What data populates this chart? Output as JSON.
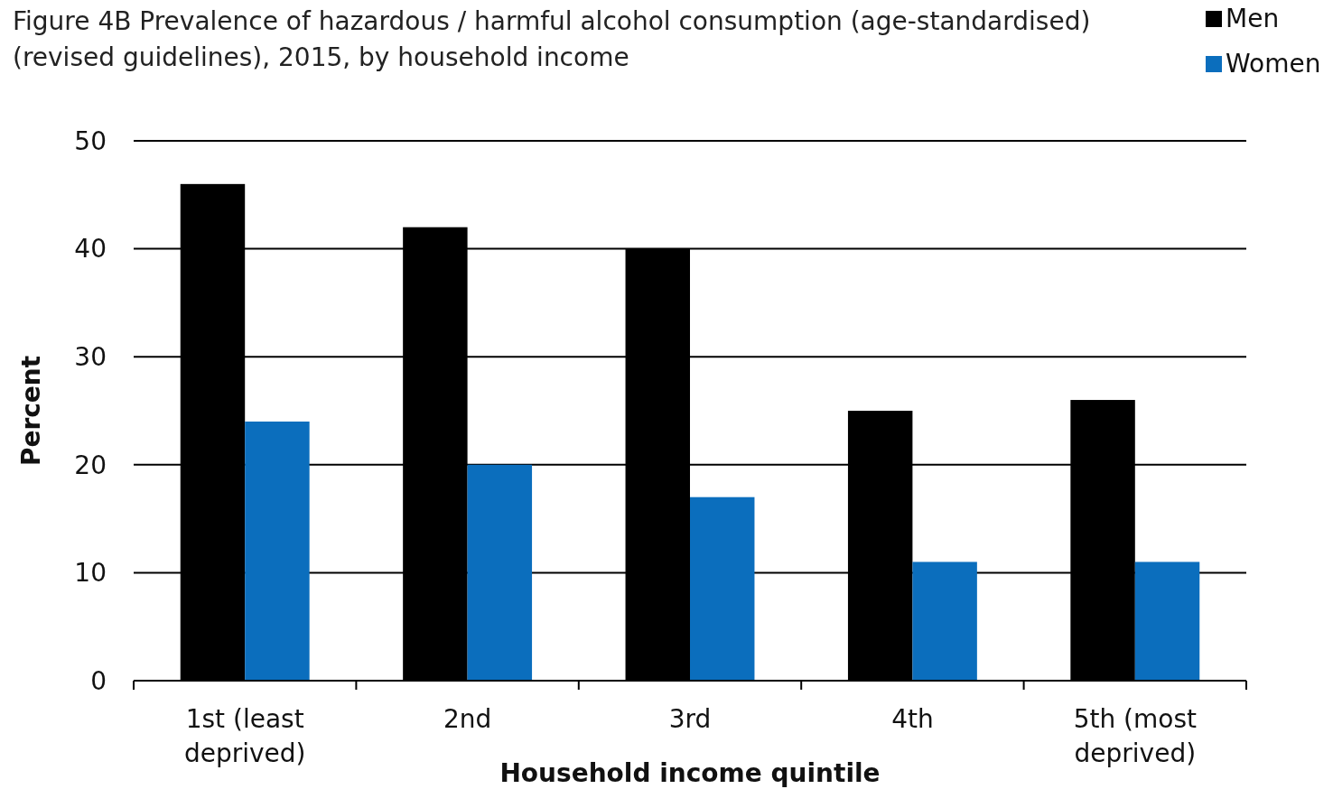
{
  "chart_data": {
    "type": "bar",
    "title": "Figure 4B Prevalence of hazardous / harmful alcohol consumption (age-standardised) (revised guidelines), 2015, by household income",
    "xlabel": "Household income quintile",
    "ylabel": "Percent",
    "categories": [
      "1st (least deprived)",
      "2nd",
      "3rd",
      "4th",
      "5th (most deprived)"
    ],
    "series": [
      {
        "name": "Men",
        "color": "#000000",
        "values": [
          46,
          42,
          40,
          25,
          26
        ]
      },
      {
        "name": "Women",
        "color": "#0b6ebd",
        "values": [
          24,
          20,
          17,
          11,
          11
        ]
      }
    ],
    "ylim": [
      0,
      50
    ],
    "yticks": [
      0,
      10,
      20,
      30,
      40,
      50
    ],
    "grid": "y",
    "legend": "top right"
  }
}
